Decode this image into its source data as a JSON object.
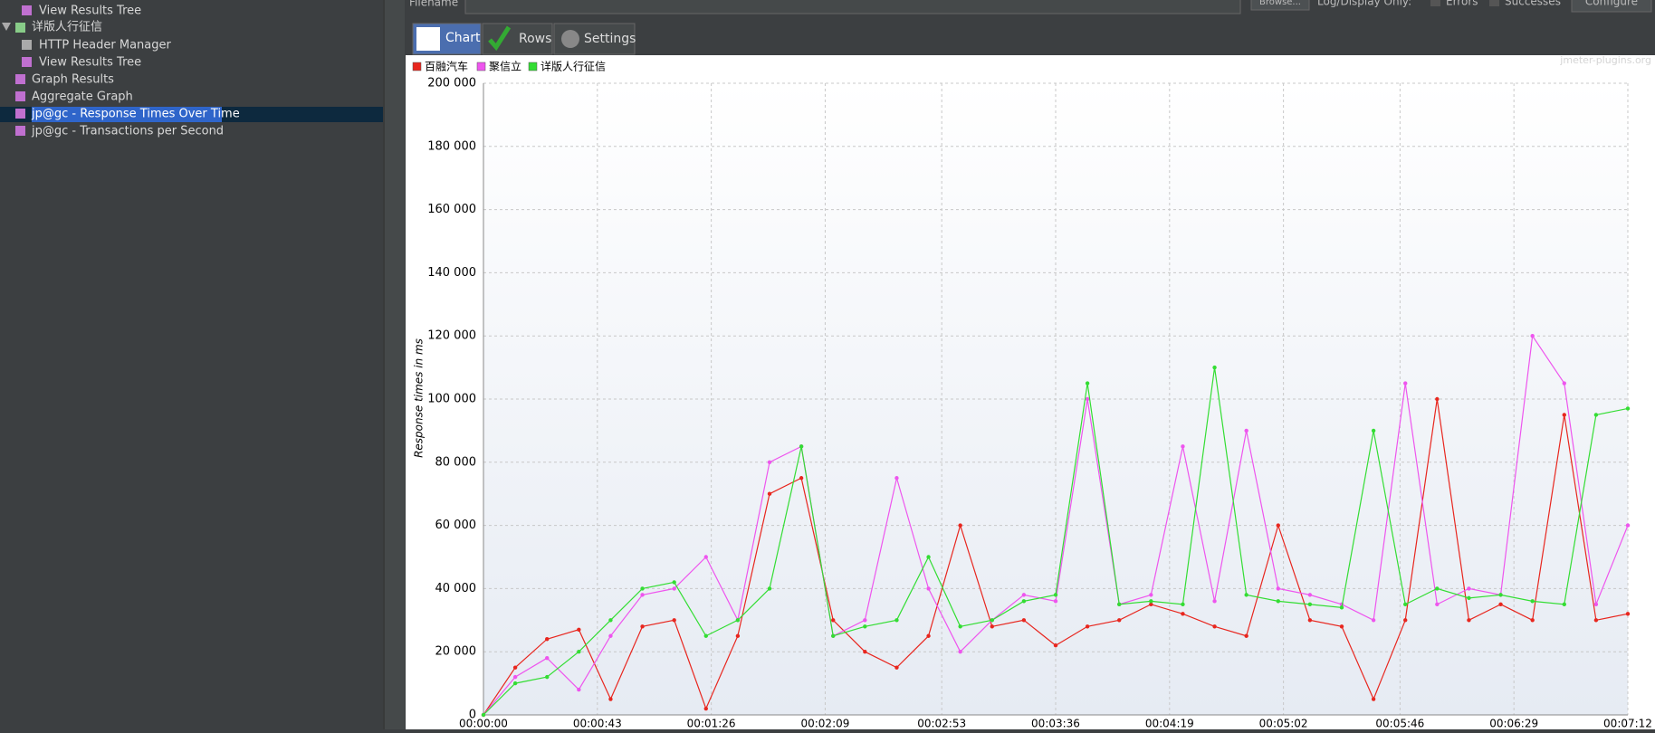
{
  "tree": {
    "items": [
      "View Results Tree",
      "详版人行征信",
      "HTTP Header Manager",
      "View Results Tree",
      "Graph Results",
      "Aggregate Graph",
      "jp@gc - Response Times Over Time",
      "jp@gc - Transactions per Second"
    ]
  },
  "toolbar": {
    "filename": "Filename",
    "browse": "Browse...",
    "log_display": "Log/Display Only:",
    "errors": "Errors",
    "successes": "Successes",
    "configure": "Configure"
  },
  "tabs": [
    "Chart",
    "Rows",
    "Settings"
  ],
  "watermark": "jmeter-plugins.org",
  "chart_data": {
    "type": "line",
    "y_label": "Response times in ms",
    "x": [
      0,
      12,
      24,
      36,
      48,
      60,
      72,
      84,
      96,
      108,
      120,
      132,
      144,
      156,
      168,
      180,
      192,
      204,
      216,
      228,
      240,
      252,
      264,
      276,
      288,
      300,
      312,
      324,
      336,
      348,
      360,
      372,
      384,
      396,
      408,
      420,
      432
    ],
    "series": [
      {
        "name": "百融汽车",
        "color": "#e8261e",
        "values": [
          0,
          15000,
          24000,
          27000,
          5000,
          28000,
          30000,
          2000,
          25000,
          70000,
          75000,
          30000,
          20000,
          15000,
          25000,
          60000,
          28000,
          30000,
          22000,
          28000,
          30000,
          35000,
          32000,
          28000,
          25000,
          60000,
          30000,
          28000,
          5000,
          30000,
          100000,
          30000,
          35000,
          30000,
          95000,
          30000,
          32000
        ]
      },
      {
        "name": "聚信立",
        "color": "#ee55ee",
        "values": [
          0,
          12000,
          18000,
          8000,
          25000,
          38000,
          40000,
          50000,
          30000,
          80000,
          85000,
          25000,
          30000,
          75000,
          40000,
          20000,
          30000,
          38000,
          36000,
          100000,
          35000,
          38000,
          85000,
          36000,
          90000,
          40000,
          38000,
          35000,
          30000,
          105000,
          35000,
          40000,
          38000,
          120000,
          105000,
          35000,
          60000
        ]
      },
      {
        "name": "详版人行征信",
        "color": "#33dd33",
        "values": [
          0,
          10000,
          12000,
          20000,
          30000,
          40000,
          42000,
          25000,
          30000,
          40000,
          85000,
          25000,
          28000,
          30000,
          50000,
          28000,
          30000,
          36000,
          38000,
          105000,
          35000,
          36000,
          35000,
          110000,
          38000,
          36000,
          35000,
          34000,
          90000,
          35000,
          40000,
          37000,
          38000,
          36000,
          35000,
          95000,
          97000
        ]
      }
    ],
    "xlim": [
      0,
      432
    ],
    "xticks": [
      {
        "value": 0,
        "label": "00:00:00"
      },
      {
        "value": 43,
        "label": "00:00:43"
      },
      {
        "value": 86,
        "label": "00:01:26"
      },
      {
        "value": 129,
        "label": "00:02:09"
      },
      {
        "value": 173,
        "label": "00:02:53"
      },
      {
        "value": 216,
        "label": "00:03:36"
      },
      {
        "value": 259,
        "label": "00:04:19"
      },
      {
        "value": 302,
        "label": "00:05:02"
      },
      {
        "value": 346,
        "label": "00:05:46"
      },
      {
        "value": 389,
        "label": "00:06:29"
      },
      {
        "value": 432,
        "label": "00:07:12"
      }
    ],
    "ylim": [
      0,
      200000
    ],
    "yticks": [
      0,
      {
        "value": 20000,
        "label": "20 000"
      },
      {
        "value": 40000,
        "label": "40 000"
      },
      {
        "value": 60000,
        "label": "60 000"
      },
      {
        "value": 80000,
        "label": "80 000"
      },
      {
        "value": 100000,
        "label": "100 000"
      },
      {
        "value": 120000,
        "label": "120 000"
      },
      {
        "value": 140000,
        "label": "140 000"
      },
      {
        "value": 160000,
        "label": "160 000"
      },
      {
        "value": 180000,
        "label": "180 000"
      },
      {
        "value": 200000,
        "label": "200 000"
      }
    ],
    "grid": true
  }
}
